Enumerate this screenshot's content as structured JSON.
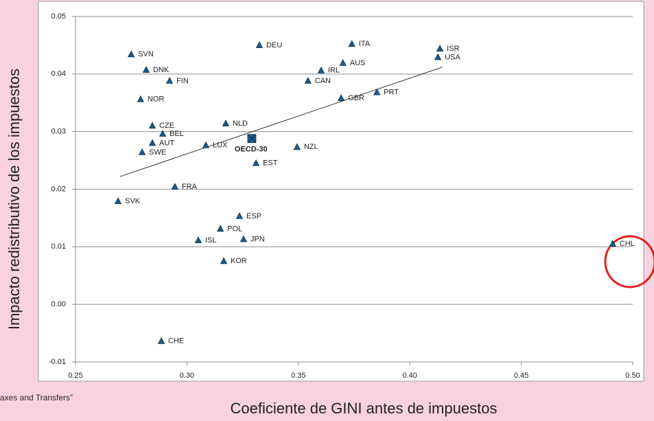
{
  "chart_data": {
    "type": "scatter",
    "ylabel": "Impacto redistributivo de los impuestos",
    "xlabel": "Coeficiente de GINI antes de impuestos",
    "source": "axes and Transfers”",
    "xlim": [
      0.25,
      0.5
    ],
    "ylim": [
      -0.01,
      0.05
    ],
    "xticks": [
      0.25,
      {
        "value": 0.3,
        "label": "0.30"
      },
      0.35,
      {
        "value": 0.4,
        "label": "0.40"
      },
      0.45,
      {
        "value": 0.5,
        "label": "0.50"
      }
    ],
    "yticks": [
      0.05,
      0.04,
      0.03,
      0.02,
      0.01,
      {
        "value": 0,
        "label": "0.00"
      },
      -0.01
    ],
    "grid": true,
    "series": [
      {
        "marker": "triangle",
        "color": "#1f5a8a",
        "labels": [
          "SVN",
          "DEU",
          "ITA",
          "ISR",
          "USA",
          "AUS",
          "DNK",
          "IRL",
          "FIN",
          "CAN",
          "PRT",
          "GBR",
          "NOR",
          "NLD",
          "CZE",
          "BEL",
          "AUT",
          "LUX",
          "NZL",
          "SWE",
          "EST",
          "FRA",
          "SVK",
          "ESP",
          "POL",
          "JPN",
          "ISL",
          "KOR",
          "CHL",
          "CHE"
        ],
        "x": [
          0.275,
          0.3325,
          0.374,
          0.4135,
          0.4126,
          0.37,
          0.2817,
          0.3602,
          0.2922,
          0.3543,
          0.3852,
          0.3692,
          0.2792,
          0.3174,
          0.2845,
          0.2891,
          0.2845,
          0.3085,
          0.3494,
          0.2799,
          0.331,
          0.2946,
          0.2691,
          0.3236,
          0.315,
          0.3254,
          0.3051,
          0.3165,
          0.491,
          0.2885
        ],
        "y": [
          0.0434,
          0.045,
          0.0452,
          0.0444,
          0.0429,
          0.0419,
          0.0407,
          0.0406,
          0.0388,
          0.0388,
          0.0368,
          0.0358,
          0.0356,
          0.0314,
          0.031,
          0.0296,
          0.028,
          0.0276,
          0.0273,
          0.0264,
          0.0245,
          0.0204,
          0.0179,
          0.0153,
          0.0131,
          0.0113,
          0.0111,
          0.0075,
          0.0105,
          -0.0064
        ]
      },
      {
        "marker": "square-x",
        "color": "#1f5a8a",
        "bold": true,
        "labels": [
          "OECD-30"
        ],
        "x": [
          0.3291
        ],
        "y": [
          0.0288
        ]
      }
    ],
    "trendline": {
      "x": [
        0.27,
        0.4146
      ],
      "y": [
        0.0222,
        0.0412
      ]
    }
  }
}
